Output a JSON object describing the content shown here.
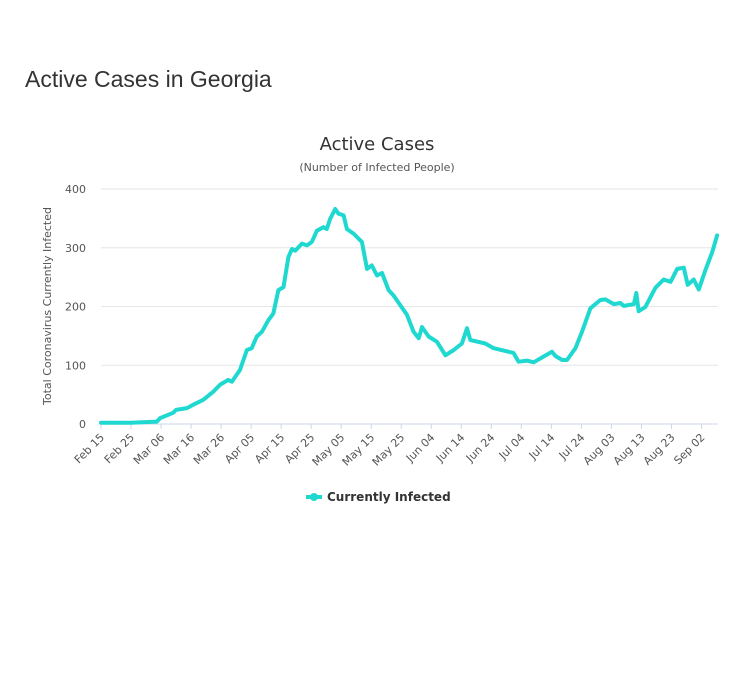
{
  "page": {
    "title": "Active Cases in Georgia"
  },
  "chart_data": {
    "type": "line",
    "title": "Active Cases",
    "subtitle": "(Number of Infected People)",
    "xlabel": "",
    "ylabel": "Total Coronavirus Currently Infected",
    "ylim": [
      0,
      400
    ],
    "yticks": [
      0,
      100,
      200,
      300,
      400
    ],
    "xlim_days": [
      0,
      205.5
    ],
    "xtick_labels": [
      "Feb 15",
      "Feb 25",
      "Mar 06",
      "Mar 16",
      "Mar 26",
      "Apr 05",
      "Apr 15",
      "Apr 25",
      "May 05",
      "May 15",
      "May 25",
      "Jun 04",
      "Jun 14",
      "Jun 24",
      "Jul 04",
      "Jul 14",
      "Jul 24",
      "Aug 03",
      "Aug 13",
      "Aug 23",
      "Sep 02"
    ],
    "xtick_step_days": 10,
    "grid": true,
    "legend": {
      "position": "bottom-center",
      "entries": [
        "Currently Infected"
      ]
    },
    "series": [
      {
        "name": "Currently Infected",
        "color": "#1fd8d0",
        "x_days": [
          0,
          10,
          18.6,
          19.7,
          24,
          25,
          28.6,
          30.8,
          34,
          37.4,
          39.7,
          42.4,
          43.6,
          46.3,
          48.6,
          50.2,
          51.9,
          53.6,
          55.8,
          57.4,
          59.1,
          60.8,
          62.4,
          63.6,
          64.7,
          66.9,
          68.6,
          70.2,
          71.9,
          74.1,
          75.2,
          76.3,
          78,
          79.1,
          80.8,
          81.9,
          84.1,
          86.9,
          88.6,
          90.2,
          91.9,
          93.6,
          95.8,
          97.4,
          100,
          101.9,
          104.1,
          105.8,
          106.9,
          109.1,
          111.9,
          114.7,
          117.5,
          120.2,
          121.9,
          123,
          126.3,
          128,
          130.8,
          134.1,
          137.4,
          139.1,
          141.9,
          144.1,
          147.5,
          150.2,
          151.3,
          153.6,
          155.2,
          158,
          160.2,
          163,
          166.3,
          168,
          170.8,
          173,
          174.1,
          177.5,
          178.3,
          179.1,
          181.3,
          184.7,
          187.4,
          189.7,
          191.9,
          194.1,
          195.4,
          197.4,
          199.1,
          201.3,
          203.6,
          205.2
        ],
        "values": [
          2,
          2,
          4,
          10,
          19,
          24,
          27,
          33,
          41,
          55,
          67,
          75,
          72,
          92,
          126,
          129,
          149,
          157,
          177,
          188,
          228,
          233,
          284,
          298,
          295,
          307,
          304,
          310,
          329,
          335,
          332,
          349,
          366,
          358,
          355,
          332,
          324,
          310,
          264,
          270,
          253,
          257,
          228,
          219,
          200,
          186,
          157,
          146,
          165,
          149,
          140,
          117,
          126,
          137,
          163,
          143,
          139,
          137,
          129,
          125,
          121,
          106,
          108,
          105,
          115,
          123,
          116,
          109,
          109,
          129,
          157,
          197,
          211,
          212,
          204,
          206,
          201,
          204,
          223,
          192,
          199,
          232,
          246,
          242,
          264,
          266,
          237,
          246,
          229,
          262,
          293,
          321
        ]
      }
    ]
  }
}
